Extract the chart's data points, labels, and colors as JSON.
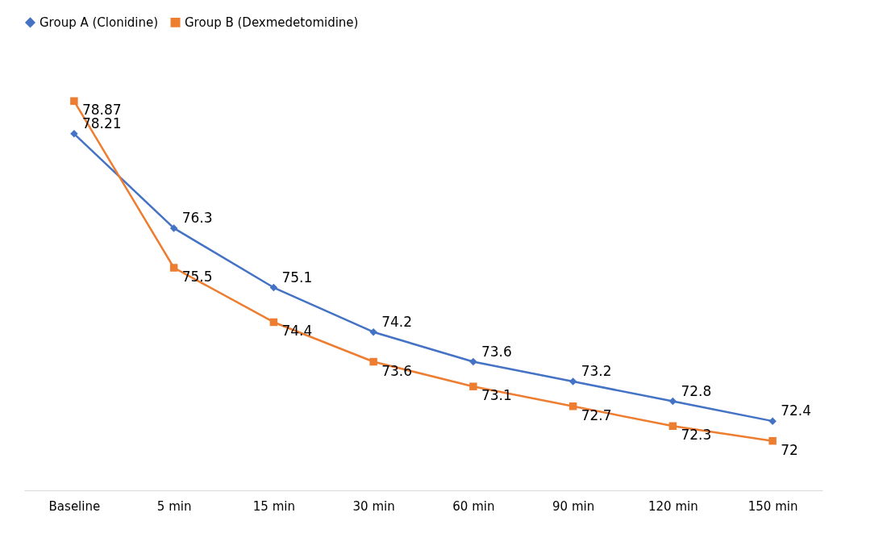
{
  "chart_data": {
    "type": "line",
    "categories": [
      "Baseline",
      "5 min",
      "15 min",
      "30 min",
      "60 min",
      "90 min",
      "120 min",
      "150 min"
    ],
    "series": [
      {
        "name": "Group A (Clonidine)",
        "color": "#4472c4",
        "marker": "diamond",
        "values": [
          78.21,
          76.3,
          75.1,
          74.2,
          73.6,
          73.2,
          72.8,
          72.4
        ]
      },
      {
        "name": "Group B (Dexmedetomidine)",
        "color": "#ed7d31",
        "marker": "square",
        "values": [
          78.87,
          75.5,
          74.4,
          73.6,
          73.1,
          72.7,
          72.3,
          72
        ]
      }
    ],
    "data_labels": true,
    "legend": "top",
    "grid": false,
    "line_style": "solid",
    "tick_labels": "x"
  }
}
